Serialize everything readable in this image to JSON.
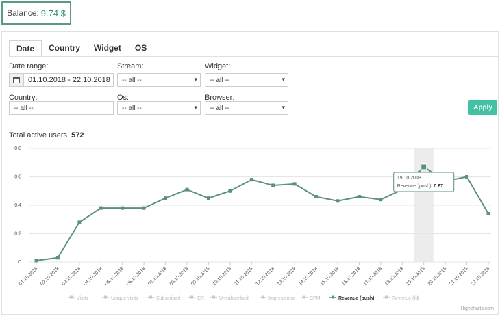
{
  "balance": {
    "label": "Balance:",
    "value": "9.74 $"
  },
  "tabs": [
    {
      "label": "Date",
      "active": true
    },
    {
      "label": "Country",
      "active": false
    },
    {
      "label": "Widget",
      "active": false
    },
    {
      "label": "OS",
      "active": false
    }
  ],
  "filters": {
    "date_range": {
      "label": "Date range:",
      "value": "01.10.2018 - 22.10.2018"
    },
    "stream": {
      "label": "Stream:",
      "value": "-- all --"
    },
    "widget": {
      "label": "Widget:",
      "value": "-- all --"
    },
    "country": {
      "label": "Country:",
      "value": "-- all --"
    },
    "os": {
      "label": "Os:",
      "value": "-- all --"
    },
    "browser": {
      "label": "Browser:",
      "value": "-- all --"
    }
  },
  "apply_label": "Apply",
  "total_users": {
    "label": "Total active users:",
    "value": "572"
  },
  "colors": {
    "accent": "#43c1a2",
    "series": "#5b8f84",
    "legend_inactive": "#c8c8c8"
  },
  "chart_data": {
    "type": "line",
    "x": [
      "01.10.2018",
      "02.10.2018",
      "03.10.2018",
      "04.10.2018",
      "05.10.2018",
      "06.10.2018",
      "07.10.2018",
      "08.10.2018",
      "09.10.2018",
      "10.10.2018",
      "11.10.2018",
      "12.10.2018",
      "13.10.2018",
      "14.10.2018",
      "15.10.2018",
      "16.10.2018",
      "17.10.2018",
      "18.10.2018",
      "19.10.2018",
      "20.10.2018",
      "21.10.2018",
      "22.10.2018"
    ],
    "series": [
      {
        "name": "Revenue (push)",
        "values": [
          0.01,
          0.03,
          0.28,
          0.38,
          0.38,
          0.38,
          0.45,
          0.51,
          0.45,
          0.5,
          0.58,
          0.54,
          0.55,
          0.46,
          0.43,
          0.46,
          0.44,
          0.51,
          0.67,
          0.57,
          0.6,
          0.34
        ]
      }
    ],
    "yticks": [
      "0",
      "0.2",
      "0.4",
      "0.6",
      "0.8"
    ],
    "ylim": [
      0,
      0.8
    ],
    "grid": true,
    "highlight_index": 18,
    "tooltip": {
      "date": "19.10.2018",
      "label": "Revenue (push):",
      "value": "0.67"
    },
    "legend": [
      "Visits",
      "Unique visits",
      "Subscribed",
      "CR",
      "Unsubscribed",
      "Impressions",
      "CPM",
      "Revenue (push)",
      "Revenue (fd)"
    ],
    "legend_active": "Revenue (push)",
    "credit": "Highcharts.com"
  }
}
